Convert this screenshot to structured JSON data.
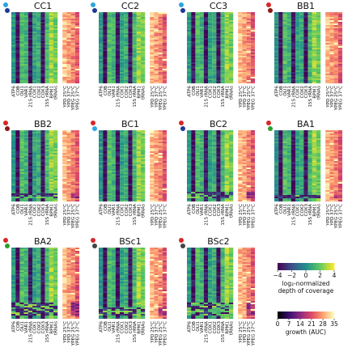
{
  "panels": [
    {
      "name": "CC1",
      "dots": [
        "#2ca4e0",
        "#1f3a93"
      ],
      "block_rows": 0
    },
    {
      "name": "CC2",
      "dots": [
        "#2ca4e0",
        "#1f3a93"
      ],
      "block_rows": 0
    },
    {
      "name": "CC3",
      "dots": [
        "#2ca4e0",
        "#1f3a93"
      ],
      "block_rows": 0
    },
    {
      "name": "BB1",
      "dots": [
        "#d62728",
        "#8b1a1a"
      ],
      "block_rows": 0
    },
    {
      "name": "BB2",
      "dots": [
        "#d62728",
        "#8b1a1a"
      ],
      "block_rows": 3
    },
    {
      "name": "BC1",
      "dots": [
        "#d62728",
        "#2ca4e0"
      ],
      "block_rows": 0
    },
    {
      "name": "BC2",
      "dots": [
        "#d62728",
        "#1f3a93"
      ],
      "block_rows": 4
    },
    {
      "name": "BA1",
      "dots": [
        "#d62728",
        "#2ca02c"
      ],
      "block_rows": 2
    },
    {
      "name": "BA2",
      "dots": [
        "#d62728",
        "#2ca02c"
      ],
      "block_rows": 8
    },
    {
      "name": "BSc1",
      "dots": [
        "#d62728",
        "#444444"
      ],
      "block_rows": 5
    },
    {
      "name": "BSc2",
      "dots": [
        "#d62728",
        "#444444"
      ],
      "block_rows": 8
    }
  ],
  "coverage_columns": [
    "ATP6",
    "COB",
    "OLI1",
    "VAR1",
    "21S rRNA",
    "COX1",
    "COX2",
    "COX3",
    "15S rRNA",
    "RPM1",
    "tRNAs"
  ],
  "growth_columns": [
    "YPD 25°C",
    "YPD 37°C",
    "YPEG 25°C",
    "YPEG 37°C"
  ],
  "chart_data": {
    "type": "heatmap",
    "coverage_colorbar": {
      "label_line1": "log₂-normalized",
      "label_line2": "depth of coverage",
      "ticks": [
        "−4",
        "−2",
        "0",
        "2",
        "4"
      ],
      "range": [
        -4,
        4
      ],
      "colors": [
        "#440154",
        "#3b528b",
        "#21908d",
        "#5dc962",
        "#fde725"
      ]
    },
    "growth_colorbar": {
      "label": "growth (AUC)",
      "ticks": [
        "0",
        "7",
        "14",
        "21",
        "28",
        "35"
      ],
      "range": [
        0,
        35
      ],
      "colors": [
        "#000004",
        "#3b0f70",
        "#8c2981",
        "#de4968",
        "#fe9f6d",
        "#fcfdbf"
      ]
    },
    "column_profile": [
      0.3,
      -3.6,
      1.6,
      1.2,
      -3.4,
      0.6,
      1.0,
      -3.5,
      1.4,
      2.8,
      2.2
    ],
    "growth_profile": [
      30,
      28,
      26,
      22
    ]
  }
}
